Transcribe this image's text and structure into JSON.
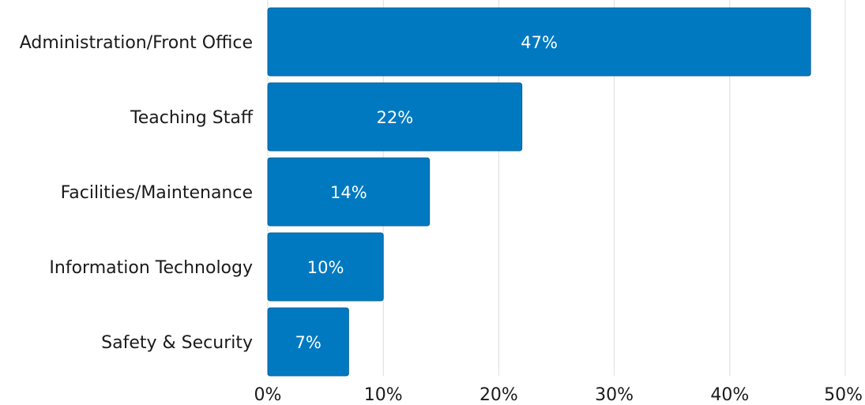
{
  "chart_data": {
    "type": "bar",
    "orientation": "horizontal",
    "categories": [
      "Administration/Front Office",
      "Teaching Staff",
      "Facilities/Maintenance",
      "Information Technology",
      "Safety & Security"
    ],
    "values": [
      47,
      22,
      14,
      10,
      7
    ],
    "data_labels": [
      "47%",
      "22%",
      "14%",
      "10%",
      "7%"
    ],
    "title": "",
    "xlabel": "",
    "ylabel": "",
    "xlim": [
      0,
      50
    ],
    "x_ticks": [
      0,
      10,
      20,
      30,
      40,
      50
    ],
    "x_tick_labels": [
      "0%",
      "10%",
      "20%",
      "30%",
      "40%",
      "50%"
    ],
    "grid": "vertical",
    "legend": "none",
    "bar_color": "#0079c1",
    "grid_color": "#dcdcdc"
  }
}
